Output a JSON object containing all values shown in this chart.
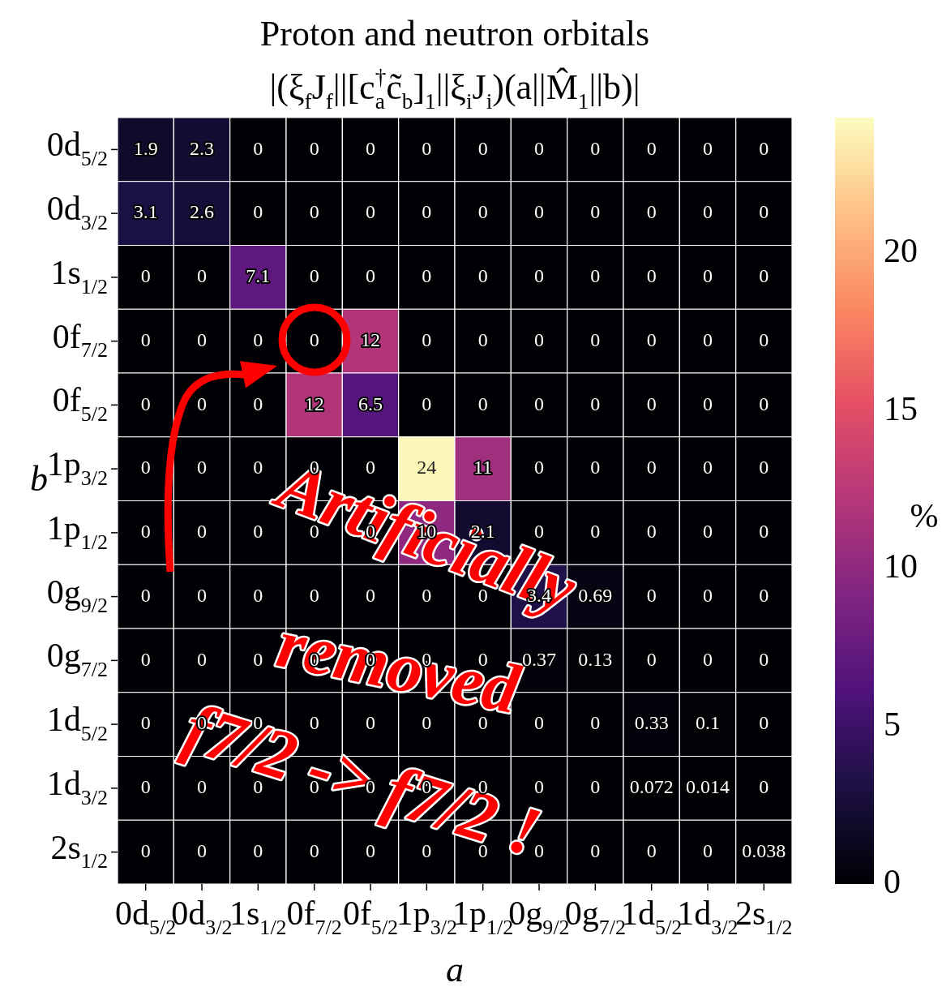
{
  "chart_data": {
    "type": "heatmap",
    "title": "Proton and neutron orbitals",
    "subtitle": "|(ξ$_{f}$J$_{f}$||[c$^{†}$$_{a}$c̃$_{b}$]$_{1}$||ξ$_{i}$J$_{i}$)(a||M̂$_{1}$||b)|",
    "xlabel": "a",
    "ylabel": "b",
    "clabel": "%",
    "categories": [
      "0d$_{5/2}$",
      "0d$_{3/2}$",
      "1s$_{1/2}$",
      "0f$_{7/2}$",
      "0f$_{5/2}$",
      "1p$_{3/2}$",
      "1p$_{1/2}$",
      "0g$_{9/2}$",
      "0g$_{7/2}$",
      "1d$_{5/2}$",
      "1d$_{3/2}$",
      "2s$_{1/2}$"
    ],
    "y_categories": [
      "0d$_{5/2}$",
      "0d$_{3/2}$",
      "1s$_{1/2}$",
      "0f$_{7/2}$",
      "0f$_{5/2}$",
      "1p$_{3/2}$",
      "1p$_{1/2}$",
      "0g$_{9/2}$",
      "0g$_{7/2}$",
      "1d$_{5/2}$",
      "1d$_{3/2}$",
      "2s$_{1/2}$"
    ],
    "cells": [
      [
        1.9,
        2.3,
        0,
        0,
        0,
        0,
        0,
        0,
        0,
        0,
        0,
        0
      ],
      [
        3.1,
        2.6,
        0,
        0,
        0,
        0,
        0,
        0,
        0,
        0,
        0,
        0
      ],
      [
        0,
        0,
        7.1,
        0,
        0,
        0,
        0,
        0,
        0,
        0,
        0,
        0
      ],
      [
        0,
        0,
        0,
        0,
        12,
        0,
        0,
        0,
        0,
        0,
        0,
        0
      ],
      [
        0,
        0,
        0,
        12,
        6.5,
        0,
        0,
        0,
        0,
        0,
        0,
        0
      ],
      [
        0,
        0,
        0,
        0,
        0,
        24,
        11,
        0,
        0,
        0,
        0,
        0
      ],
      [
        0,
        0,
        0,
        0,
        0,
        10,
        2.1,
        0,
        0,
        0,
        0,
        0
      ],
      [
        0,
        0,
        0,
        0,
        0,
        0,
        0,
        3.4,
        0.69,
        0,
        0,
        0
      ],
      [
        0,
        0,
        0,
        0,
        0,
        0,
        0,
        0.37,
        0.13,
        0,
        0,
        0
      ],
      [
        0,
        0,
        0,
        0,
        0,
        0,
        0,
        0,
        0,
        0.33,
        0.1,
        0
      ],
      [
        0,
        0,
        0,
        0,
        0,
        0,
        0,
        0,
        0,
        0.072,
        0.014,
        0
      ],
      [
        0,
        0,
        0,
        0,
        0,
        0,
        0,
        0,
        0,
        0,
        0,
        0.038
      ]
    ],
    "clim": [
      0,
      24.3
    ],
    "cticks": [
      0,
      5,
      10,
      15,
      20
    ],
    "data_labels": true,
    "annotations": [
      "Artificially",
      "removed",
      "f7/2 -> f7/2 !"
    ]
  }
}
